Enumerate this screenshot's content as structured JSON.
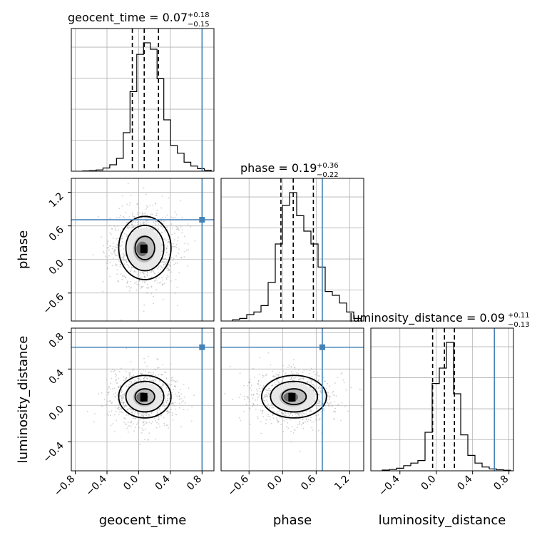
{
  "chart_data": {
    "type": "corner",
    "parameters": [
      {
        "name": "geocent_time",
        "median": 0.07,
        "err_plus": 0.18,
        "err_minus": 0.15,
        "title": "geocent_time = 0.07",
        "sup": "+0.18",
        "sub": "−0.15",
        "quantiles": [
          -0.08,
          0.07,
          0.25
        ],
        "truth": 0.8
      },
      {
        "name": "phase",
        "median": 0.19,
        "err_plus": 0.36,
        "err_minus": 0.22,
        "title": "phase = 0.19",
        "sup": "+0.36",
        "sub": "−0.22",
        "quantiles": [
          -0.03,
          0.19,
          0.55
        ],
        "truth": 0.71
      },
      {
        "name": "luminosity_distance",
        "median": 0.09,
        "err_plus": 0.11,
        "err_minus": 0.13,
        "title": "luminosity_distance = 0.09",
        "sup": "+0.11",
        "sub": "−0.13",
        "quantiles": [
          -0.04,
          0.09,
          0.2
        ],
        "truth": 0.64
      }
    ],
    "ranges": {
      "geocent_time": [
        -0.85,
        0.95
      ],
      "phase": [
        -1.1,
        1.45
      ],
      "luminosity_distance": [
        -0.72,
        0.85
      ]
    },
    "ticks": {
      "geocent_time": [
        "−0.8",
        "−0.4",
        "0.0",
        "0.4",
        "0.8"
      ],
      "phase_x": [
        "−0.6",
        "0.0",
        "0.6",
        "1.2"
      ],
      "phase_y": [
        "1.2",
        "0.6",
        "0.0",
        "−0.6"
      ],
      "luminosity_distance_x": [
        "−0.4",
        "0.0",
        "0.4",
        "0.8"
      ],
      "luminosity_distance_y": [
        "0.8",
        "0.4",
        "0.0",
        "−0.4"
      ]
    },
    "histograms": {
      "geocent_time": [
        0.002,
        0.004,
        0.01,
        0.025,
        0.05,
        0.1,
        0.3,
        0.62,
        0.91,
        1.0,
        0.95,
        0.72,
        0.4,
        0.2,
        0.14,
        0.07,
        0.04,
        0.02,
        0.008
      ],
      "phase": [
        0.01,
        0.02,
        0.05,
        0.07,
        0.12,
        0.3,
        0.6,
        0.9,
        1.0,
        0.82,
        0.7,
        0.6,
        0.42,
        0.23,
        0.2,
        0.14,
        0.07,
        0.02
      ],
      "luminosity_distance": [
        0.006,
        0.01,
        0.02,
        0.04,
        0.06,
        0.08,
        0.3,
        0.68,
        0.8,
        1.0,
        0.6,
        0.28,
        0.12,
        0.06,
        0.03,
        0.015,
        0.008,
        0.004
      ]
    },
    "color_truth": "#4682b4",
    "grid": true
  }
}
